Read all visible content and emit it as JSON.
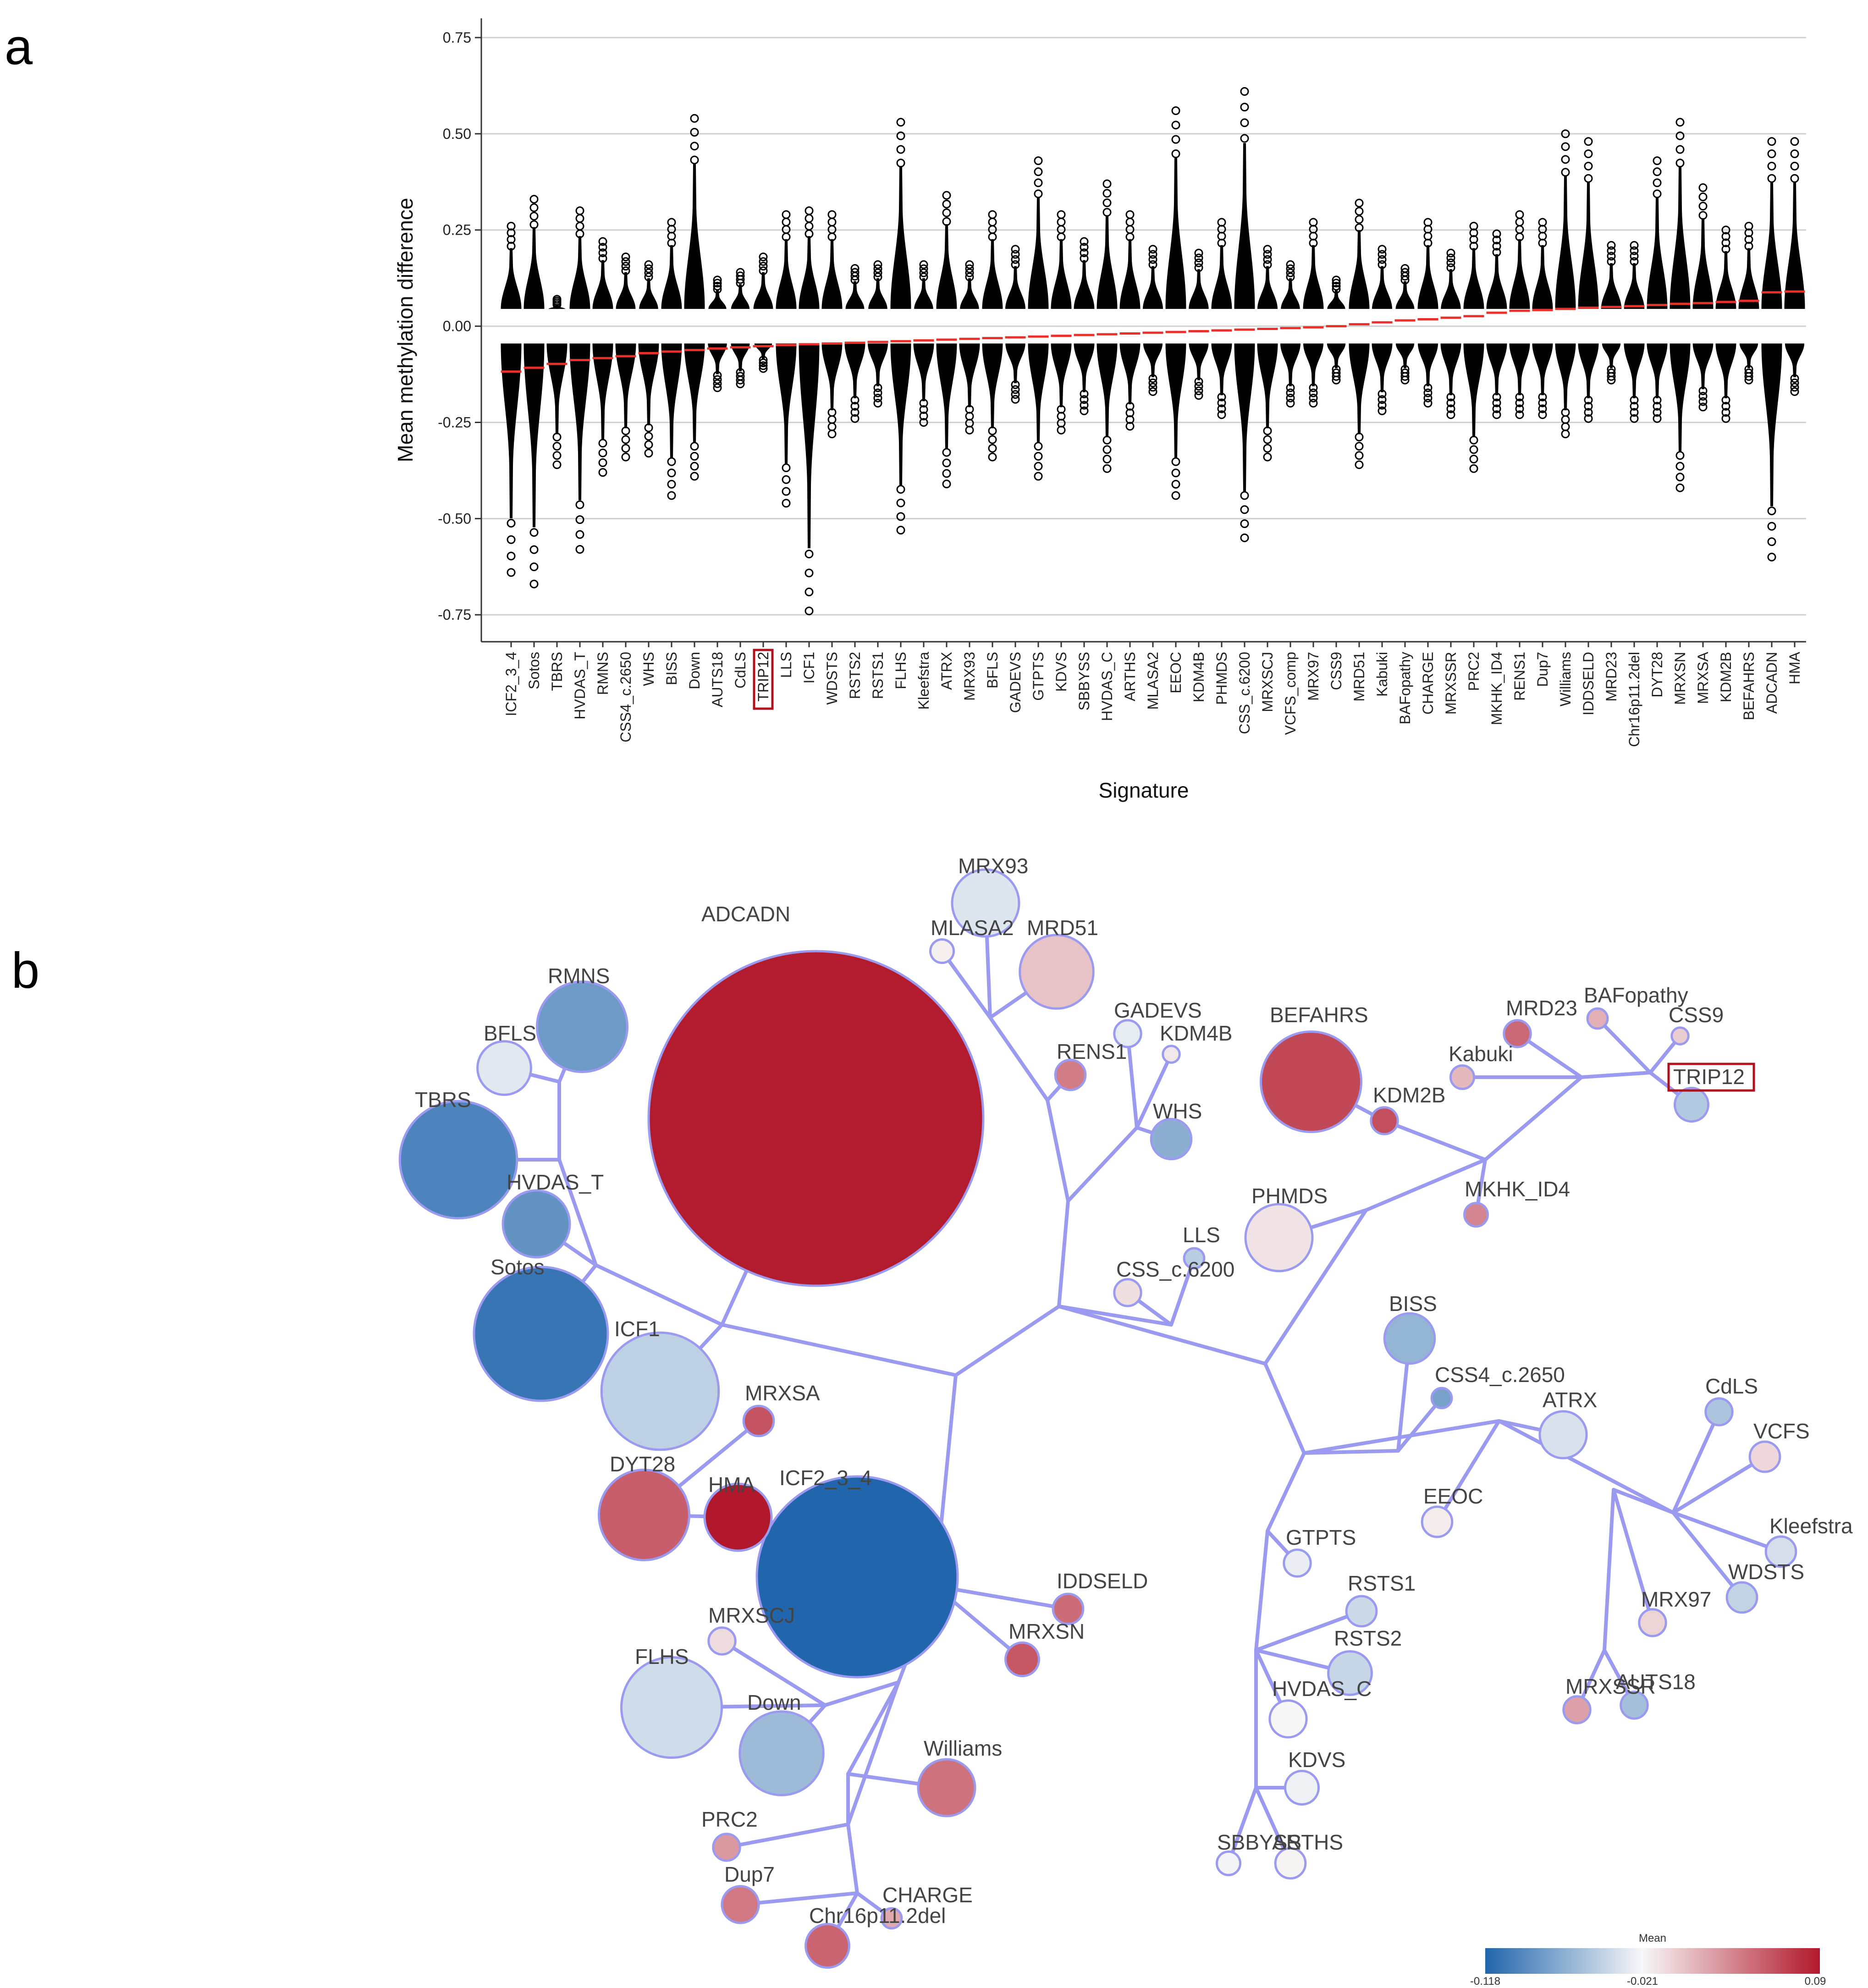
{
  "panel_a_label": "a",
  "panel_b_label": "b",
  "colors": {
    "low": "#2166ac",
    "mid": "#f7f7f7",
    "high": "#b2182b",
    "edge": "#9a9af0",
    "mean_line": "#e8312a",
    "highlight_box": "#b0121b"
  },
  "chart_data": [
    {
      "type": "scatter",
      "subtype": "strip/violin-like point distributions of probe methylation differences with mean line",
      "ylabel": "Mean methylation difference",
      "xlabel": "Signature",
      "ylim": [
        -0.82,
        0.8
      ],
      "yticks": [
        -0.75,
        -0.5,
        -0.25,
        0.0,
        0.25,
        0.5,
        0.75
      ],
      "ytick_labels": [
        "-0.75",
        "-0.50",
        "-0.25",
        "0.00",
        "0.25",
        "0.50",
        "0.75"
      ],
      "grid": "horizontal",
      "highlighted_category": "TRIP12",
      "categories": [
        "ICF2_3_4",
        "Sotos",
        "TBRS",
        "HVDAS_T",
        "RMNS",
        "CSS4_c.2650",
        "WHS",
        "BISS",
        "Down",
        "AUTS18",
        "CdLS",
        "TRIP12",
        "LLS",
        "ICF1",
        "WDSTS",
        "RSTS2",
        "RSTS1",
        "FLHS",
        "Kleefstra",
        "ATRX",
        "MRX93",
        "BFLS",
        "GADEVS",
        "GTPTS",
        "KDVS",
        "SBBYSS",
        "HVDAS_C",
        "ARTHS",
        "MLASA2",
        "EEOC",
        "KDM4B",
        "PHMDS",
        "CSS_c.6200",
        "MRXSCJ",
        "VCFS_comp",
        "MRX97",
        "CSS9",
        "MRD51",
        "Kabuki",
        "BAFopathy",
        "CHARGE",
        "MRXSSR",
        "PRC2",
        "MKHK_ID4",
        "RENS1",
        "Dup7",
        "Williams",
        "IDDSELD",
        "MRD23",
        "Chr16p11.2del",
        "DYT28",
        "MRXSN",
        "MRXSA",
        "KDM2B",
        "BEFAHRS",
        "ADCADN",
        "HMA"
      ],
      "series": [
        {
          "name": "max positive",
          "values": [
            0.26,
            0.33,
            0.07,
            0.3,
            0.22,
            0.18,
            0.16,
            0.27,
            0.54,
            0.12,
            0.14,
            0.18,
            0.29,
            0.3,
            0.29,
            0.15,
            0.16,
            0.53,
            0.16,
            0.34,
            0.16,
            0.29,
            0.2,
            0.43,
            0.29,
            0.22,
            0.37,
            0.29,
            0.2,
            0.56,
            0.19,
            0.27,
            0.61,
            0.2,
            0.16,
            0.27,
            0.12,
            0.32,
            0.2,
            0.15,
            0.27,
            0.19,
            0.26,
            0.24,
            0.29,
            0.27,
            0.5,
            0.48,
            0.21,
            0.21,
            0.43,
            0.53,
            0.36,
            0.25,
            0.26,
            0.48,
            0.48
          ]
        },
        {
          "name": "min negative",
          "values": [
            -0.64,
            -0.67,
            -0.36,
            -0.58,
            -0.38,
            -0.34,
            -0.33,
            -0.44,
            -0.39,
            -0.16,
            -0.15,
            -0.11,
            -0.46,
            -0.74,
            -0.28,
            -0.24,
            -0.2,
            -0.53,
            -0.25,
            -0.41,
            -0.27,
            -0.34,
            -0.19,
            -0.39,
            -0.27,
            -0.22,
            -0.37,
            -0.26,
            -0.17,
            -0.44,
            -0.18,
            -0.23,
            -0.55,
            -0.34,
            -0.2,
            -0.2,
            -0.14,
            -0.36,
            -0.22,
            -0.14,
            -0.2,
            -0.23,
            -0.37,
            -0.23,
            -0.23,
            -0.23,
            -0.28,
            -0.24,
            -0.14,
            -0.24,
            -0.24,
            -0.42,
            -0.21,
            -0.24,
            -0.14,
            -0.6,
            -0.17
          ]
        },
        {
          "name": "mean",
          "values": [
            -0.118,
            -0.108,
            -0.098,
            -0.088,
            -0.083,
            -0.078,
            -0.07,
            -0.066,
            -0.062,
            -0.058,
            -0.055,
            -0.052,
            -0.049,
            -0.047,
            -0.045,
            -0.043,
            -0.041,
            -0.039,
            -0.037,
            -0.035,
            -0.033,
            -0.031,
            -0.029,
            -0.027,
            -0.025,
            -0.023,
            -0.021,
            -0.019,
            -0.017,
            -0.015,
            -0.013,
            -0.011,
            -0.009,
            -0.007,
            -0.005,
            -0.003,
            0.0,
            0.005,
            0.01,
            0.015,
            0.018,
            0.022,
            0.026,
            0.035,
            0.04,
            0.042,
            0.045,
            0.048,
            0.05,
            0.052,
            0.055,
            0.058,
            0.06,
            0.063,
            0.066,
            0.088,
            0.09
          ]
        }
      ]
    },
    {
      "type": "network",
      "subtype": "minimum spanning tree of signatures; node size = number of probes, node colour = mean methylation difference",
      "colorbar": {
        "title": "Mean",
        "min": -0.118,
        "mid": -0.021,
        "max": 0.09,
        "tick_labels": [
          "-0.118",
          "-0.021",
          "0.09"
        ]
      },
      "highlighted_node": "TRIP12",
      "nodes": [
        {
          "name": "ADCADN",
          "mean": 0.088,
          "size": 100
        },
        {
          "name": "ICF2_3_4",
          "mean": -0.118,
          "size": 60
        },
        {
          "name": "Sotos",
          "mean": -0.108,
          "size": 40
        },
        {
          "name": "TBRS",
          "mean": -0.098,
          "size": 35
        },
        {
          "name": "ICF1",
          "mean": -0.047,
          "size": 35
        },
        {
          "name": "RMNS",
          "mean": -0.083,
          "size": 27
        },
        {
          "name": "DYT28",
          "mean": 0.055,
          "size": 27
        },
        {
          "name": "FLHS",
          "mean": -0.039,
          "size": 30
        },
        {
          "name": "Down",
          "mean": -0.062,
          "size": 25
        },
        {
          "name": "BEFAHRS",
          "mean": 0.066,
          "size": 30
        },
        {
          "name": "HMA",
          "mean": 0.09,
          "size": 20
        },
        {
          "name": "HVDAS_T",
          "mean": -0.088,
          "size": 20
        },
        {
          "name": "PHMDS",
          "mean": -0.011,
          "size": 20
        },
        {
          "name": "MRD51",
          "mean": 0.005,
          "size": 22
        },
        {
          "name": "MRX93",
          "mean": -0.033,
          "size": 20
        },
        {
          "name": "BFLS",
          "mean": -0.031,
          "size": 16
        },
        {
          "name": "Williams",
          "mean": 0.045,
          "size": 17
        },
        {
          "name": "BISS",
          "mean": -0.066,
          "size": 15
        },
        {
          "name": "ATRX",
          "mean": -0.035,
          "size": 14
        },
        {
          "name": "RSTS2",
          "mean": -0.043,
          "size": 13
        },
        {
          "name": "WHS",
          "mean": -0.07,
          "size": 12
        },
        {
          "name": "TRIP12",
          "mean": -0.052,
          "size": 10
        },
        {
          "name": "MRXSN",
          "mean": 0.058,
          "size": 10
        },
        {
          "name": "MRXSA",
          "mean": 0.06,
          "size": 9
        },
        {
          "name": "KDM2B",
          "mean": 0.063,
          "size": 8
        },
        {
          "name": "MRD23",
          "mean": 0.05,
          "size": 8
        },
        {
          "name": "IDDSELD",
          "mean": 0.048,
          "size": 9
        },
        {
          "name": "Chr16p11.2del",
          "mean": 0.052,
          "size": 13
        },
        {
          "name": "Dup7",
          "mean": 0.042,
          "size": 11
        },
        {
          "name": "PRC2",
          "mean": 0.026,
          "size": 8
        },
        {
          "name": "CHARGE",
          "mean": 0.018,
          "size": 6
        },
        {
          "name": "MRXSCJ",
          "mean": -0.007,
          "size": 8
        },
        {
          "name": "CSS_c.6200",
          "mean": -0.009,
          "size": 8
        },
        {
          "name": "LLS",
          "mean": -0.049,
          "size": 6
        },
        {
          "name": "CSS4_c.2650",
          "mean": -0.078,
          "size": 6
        },
        {
          "name": "CdLS",
          "mean": -0.055,
          "size": 8
        },
        {
          "name": "VCFS",
          "mean": -0.005,
          "size": 9
        },
        {
          "name": "Kleefstra",
          "mean": -0.037,
          "size": 9
        },
        {
          "name": "WDSTS",
          "mean": -0.045,
          "size": 9
        },
        {
          "name": "MRX97",
          "mean": -0.003,
          "size": 8
        },
        {
          "name": "AUTS18",
          "mean": -0.058,
          "size": 8
        },
        {
          "name": "MRXSSR",
          "mean": 0.022,
          "size": 8
        },
        {
          "name": "EEOC",
          "mean": -0.015,
          "size": 9
        },
        {
          "name": "GTPTS",
          "mean": -0.027,
          "size": 8
        },
        {
          "name": "RSTS1",
          "mean": -0.041,
          "size": 9
        },
        {
          "name": "HVDAS_C",
          "mean": -0.021,
          "size": 11
        },
        {
          "name": "KDVS",
          "mean": -0.025,
          "size": 10
        },
        {
          "name": "SBBYSS",
          "mean": -0.023,
          "size": 7
        },
        {
          "name": "ARTHS",
          "mean": -0.019,
          "size": 9
        },
        {
          "name": "GADEVS",
          "mean": -0.029,
          "size": 8
        },
        {
          "name": "KDM4B",
          "mean": -0.013,
          "size": 5
        },
        {
          "name": "RENS1",
          "mean": 0.04,
          "size": 9
        },
        {
          "name": "MLASA2",
          "mean": -0.017,
          "size": 7
        },
        {
          "name": "Kabuki",
          "mean": 0.01,
          "size": 7
        },
        {
          "name": "BAFopathy",
          "mean": 0.015,
          "size": 6
        },
        {
          "name": "CSS9",
          "mean": 0.0,
          "size": 5
        },
        {
          "name": "MKHK_ID4",
          "mean": 0.035,
          "size": 7
        }
      ]
    }
  ]
}
